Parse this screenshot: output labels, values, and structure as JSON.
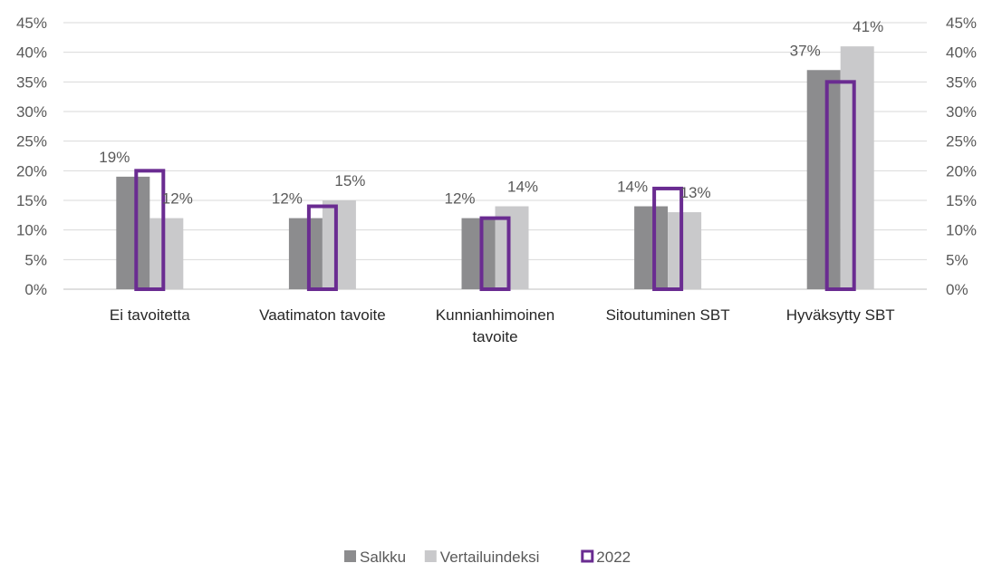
{
  "chart_data": {
    "type": "bar",
    "categories": [
      [
        "Ei tavoitetta"
      ],
      [
        "Vaatimaton tavoite"
      ],
      [
        "Kunnianhimoinen",
        "tavoite"
      ],
      [
        "Sitoutuminen SBT"
      ],
      [
        "Hyväksytty SBT"
      ]
    ],
    "series": [
      {
        "name": "Salkku",
        "values": [
          19,
          12,
          12,
          14,
          37
        ],
        "color": "#8c8c8e",
        "style": "filled",
        "labels": [
          "19%",
          "12%",
          "12%",
          "14%",
          "37%"
        ]
      },
      {
        "name": "Vertailuindeksi",
        "values": [
          12,
          15,
          14,
          13,
          41
        ],
        "color": "#c9c9cb",
        "style": "filled",
        "labels": [
          "12%",
          "15%",
          "14%",
          "13%",
          "41%"
        ]
      },
      {
        "name": "2022",
        "values": [
          20,
          14,
          12,
          17,
          35
        ],
        "color": "#6a2c91",
        "style": "outline"
      }
    ],
    "ylim": [
      0,
      45
    ],
    "yticks": [
      "0%",
      "5%",
      "10%",
      "15%",
      "20%",
      "25%",
      "30%",
      "35%",
      "40%",
      "45%"
    ],
    "secondary_yticks": [
      "0%",
      "5%",
      "10%",
      "15%",
      "20%",
      "25%",
      "30%",
      "35%",
      "40%",
      "45%"
    ],
    "grid": true,
    "legend_position": "bottom"
  }
}
